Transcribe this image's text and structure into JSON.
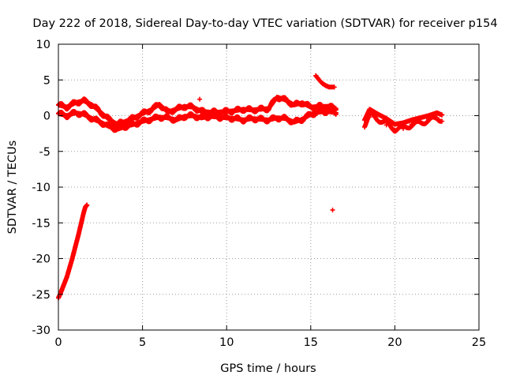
{
  "chart_data": {
    "type": "scatter",
    "title": "Day 222 of 2018, Sidereal Day-to-day VTEC variation (SDTVAR) for receiver p154",
    "xlabel": "GPS time / hours",
    "ylabel": "SDTVAR / TECUs",
    "xlim": [
      0,
      25
    ],
    "ylim": [
      -30,
      10
    ],
    "xticks": [
      0,
      5,
      10,
      15,
      20,
      25
    ],
    "yticks": [
      10,
      5,
      0,
      -5,
      -10,
      -15,
      -20,
      -25,
      -30
    ],
    "xtick_labels": [
      "0",
      "5",
      "10",
      "15",
      "20",
      "25"
    ],
    "ytick_labels": [
      "10",
      "5",
      "0",
      "-5",
      "-10",
      "-15",
      "-20",
      "-25",
      "-30"
    ],
    "grid": true,
    "marker": "+",
    "series": [
      {
        "name": "ramp_0_to_1.7h",
        "color": "#ff0000",
        "points": [
          [
            0.0,
            -25.5
          ],
          [
            0.1,
            -25.0
          ],
          [
            0.2,
            -24.4
          ],
          [
            0.3,
            -23.8
          ],
          [
            0.4,
            -23.2
          ],
          [
            0.5,
            -22.6
          ],
          [
            0.6,
            -21.8
          ],
          [
            0.7,
            -21.0
          ],
          [
            0.8,
            -20.2
          ],
          [
            0.9,
            -19.3
          ],
          [
            1.0,
            -18.4
          ],
          [
            1.1,
            -17.5
          ],
          [
            1.2,
            -16.6
          ],
          [
            1.3,
            -15.6
          ],
          [
            1.4,
            -14.6
          ],
          [
            1.5,
            -13.6
          ],
          [
            1.6,
            -12.8
          ],
          [
            1.7,
            -12.5
          ]
        ]
      },
      {
        "name": "band_upper",
        "color": "#ff0000",
        "points": [
          [
            0.0,
            1.5
          ],
          [
            0.5,
            1.2
          ],
          [
            1.0,
            1.8
          ],
          [
            1.5,
            2.1
          ],
          [
            2.0,
            1.5
          ],
          [
            2.5,
            0.5
          ],
          [
            3.0,
            -0.5
          ],
          [
            3.5,
            -1.2
          ],
          [
            4.0,
            -0.8
          ],
          [
            4.5,
            -0.3
          ],
          [
            5.0,
            0.3
          ],
          [
            5.5,
            0.8
          ],
          [
            6.0,
            1.6
          ],
          [
            6.5,
            0.5
          ],
          [
            7.0,
            0.9
          ],
          [
            7.5,
            1.3
          ],
          [
            8.0,
            1.2
          ],
          [
            8.5,
            0.6
          ],
          [
            9.0,
            0.5
          ],
          [
            9.5,
            0.5
          ],
          [
            10.0,
            0.6
          ],
          [
            10.5,
            0.7
          ],
          [
            11.0,
            0.9
          ],
          [
            11.5,
            0.8
          ],
          [
            12.0,
            0.9
          ],
          [
            12.5,
            1.0
          ],
          [
            13.0,
            2.6
          ],
          [
            13.5,
            2.2
          ],
          [
            14.0,
            1.5
          ],
          [
            14.5,
            1.8
          ],
          [
            15.0,
            1.2
          ],
          [
            15.5,
            1.3
          ],
          [
            16.0,
            1.3
          ],
          [
            16.5,
            1.0
          ]
        ]
      },
      {
        "name": "band_lower",
        "color": "#ff0000",
        "points": [
          [
            0.0,
            0.3
          ],
          [
            0.5,
            0.0
          ],
          [
            1.0,
            0.4
          ],
          [
            1.5,
            0.2
          ],
          [
            2.0,
            -0.4
          ],
          [
            2.5,
            -0.9
          ],
          [
            3.0,
            -1.5
          ],
          [
            3.5,
            -1.9
          ],
          [
            4.0,
            -1.5
          ],
          [
            4.5,
            -1.2
          ],
          [
            5.0,
            -0.8
          ],
          [
            5.5,
            -0.5
          ],
          [
            6.0,
            -0.2
          ],
          [
            6.5,
            -0.3
          ],
          [
            7.0,
            -0.6
          ],
          [
            7.5,
            -0.1
          ],
          [
            8.0,
            0.0
          ],
          [
            8.5,
            -0.3
          ],
          [
            9.0,
            -0.1
          ],
          [
            9.5,
            -0.2
          ],
          [
            10.0,
            -0.3
          ],
          [
            10.5,
            -0.4
          ],
          [
            11.0,
            -0.6
          ],
          [
            11.5,
            -0.4
          ],
          [
            12.0,
            -0.5
          ],
          [
            12.5,
            -0.6
          ],
          [
            13.0,
            -0.3
          ],
          [
            13.5,
            -0.4
          ],
          [
            14.0,
            -0.9
          ],
          [
            14.5,
            -0.5
          ],
          [
            15.0,
            0.2
          ],
          [
            15.5,
            0.5
          ],
          [
            16.0,
            0.6
          ],
          [
            16.5,
            0.4
          ]
        ]
      },
      {
        "name": "spike_near_15.5h",
        "color": "#ff0000",
        "points": [
          [
            15.3,
            5.6
          ],
          [
            15.5,
            5.0
          ],
          [
            15.7,
            4.5
          ],
          [
            15.9,
            4.2
          ],
          [
            16.1,
            4.0
          ],
          [
            16.4,
            4.0
          ]
        ]
      },
      {
        "name": "after_gap",
        "color": "#ff0000",
        "points": [
          [
            18.2,
            -0.6
          ],
          [
            18.5,
            0.9
          ],
          [
            19.0,
            0.2
          ],
          [
            19.5,
            -0.4
          ],
          [
            20.0,
            -1.2
          ],
          [
            20.5,
            -1.0
          ],
          [
            21.0,
            -0.6
          ],
          [
            21.5,
            -0.3
          ],
          [
            22.0,
            0.0
          ],
          [
            22.5,
            0.4
          ],
          [
            22.8,
            0.1
          ],
          [
            20.0,
            -2.0
          ],
          [
            20.5,
            -1.8
          ],
          [
            21.0,
            -1.2
          ],
          [
            21.5,
            -0.8
          ],
          [
            22.0,
            -0.5
          ],
          [
            22.5,
            -0.3
          ],
          [
            19.0,
            -0.7
          ],
          [
            19.5,
            -1.3
          ],
          [
            18.5,
            -0.2
          ]
        ]
      },
      {
        "name": "outliers",
        "color": "#ff0000",
        "points": [
          [
            8.4,
            2.3
          ],
          [
            16.3,
            -13.2
          ]
        ]
      }
    ]
  }
}
